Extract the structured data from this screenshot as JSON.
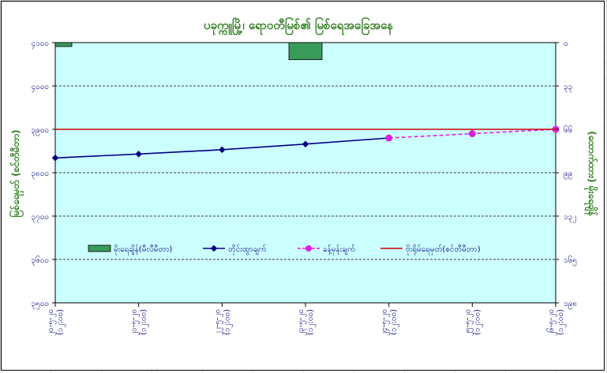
{
  "chart_data": {
    "type": "line",
    "title": "ပခုက္ကူမြို့၊ ရောဝတီမြစ်၏ မြစ်ရေအခြေအနေ",
    "ylabel": "မြစ်ရေမှတ် (စင်တီမီတာ)",
    "y2label": "(ထောက်ထား) မိုးရေချိန်",
    "ylim": [
      3500,
      4100
    ],
    "y_ticks": [
      "၃၅၀၀",
      "၃၆၀၀",
      "၃၇၀၀",
      "၃၈၀၀",
      "၃၉၀၀",
      "၄၀၀၀",
      "၄၁၀၀"
    ],
    "y2lim": [
      0,
      198
    ],
    "y2_ticks": [
      "၀",
      "၃၃",
      "၆၆",
      "၉၉",
      "၁၃၂",
      "၁၆၅",
      "၁၉၈"
    ],
    "categories": [
      "၂၀-၅-၂၀",
      "၂၁-၅-၂၀",
      "၂၂-၅-၂၀",
      "၂၃-၅-၂၀",
      "၂၄-၅-၂၀",
      "၂၅-၅-၂၀",
      "၂၆-၅-၂၀"
    ],
    "category_times": [
      "(၁၂:၀၀)",
      "(၁၂:၀၀)",
      "(၁၂:၀၀)",
      "(၁၂:၀၀)",
      "(၁၂:၀၀)",
      "(၁၂:၀၀)",
      "(၁၂:၀၀)"
    ],
    "series": [
      {
        "name": "မိုးရေချိန်(မီလီမီတာ)",
        "kind": "bar",
        "axis": "right",
        "color": "#3a9a5a",
        "values": [
          3,
          0,
          0,
          13,
          0,
          0,
          0
        ]
      },
      {
        "name": "တိုင်းထွာချက်",
        "kind": "line",
        "axis": "left",
        "color": "#000080",
        "values": [
          3834,
          3843,
          3853,
          3866,
          3880,
          null,
          null
        ]
      },
      {
        "name": "ခန့်မှန်းချက်",
        "kind": "dashed",
        "axis": "left",
        "color": "#e020e0",
        "values": [
          null,
          null,
          null,
          null,
          3880,
          3890,
          3900
        ]
      },
      {
        "name": "ဗိုးရိုမ်ရေမှတ်(စင်တီမီတာ)",
        "kind": "hline",
        "axis": "left",
        "color": "#d00000",
        "value": 3900
      }
    ],
    "plot_bg": "#ccffff",
    "grid": "dashed-horizontal",
    "legend_position": "inside-bottom"
  }
}
